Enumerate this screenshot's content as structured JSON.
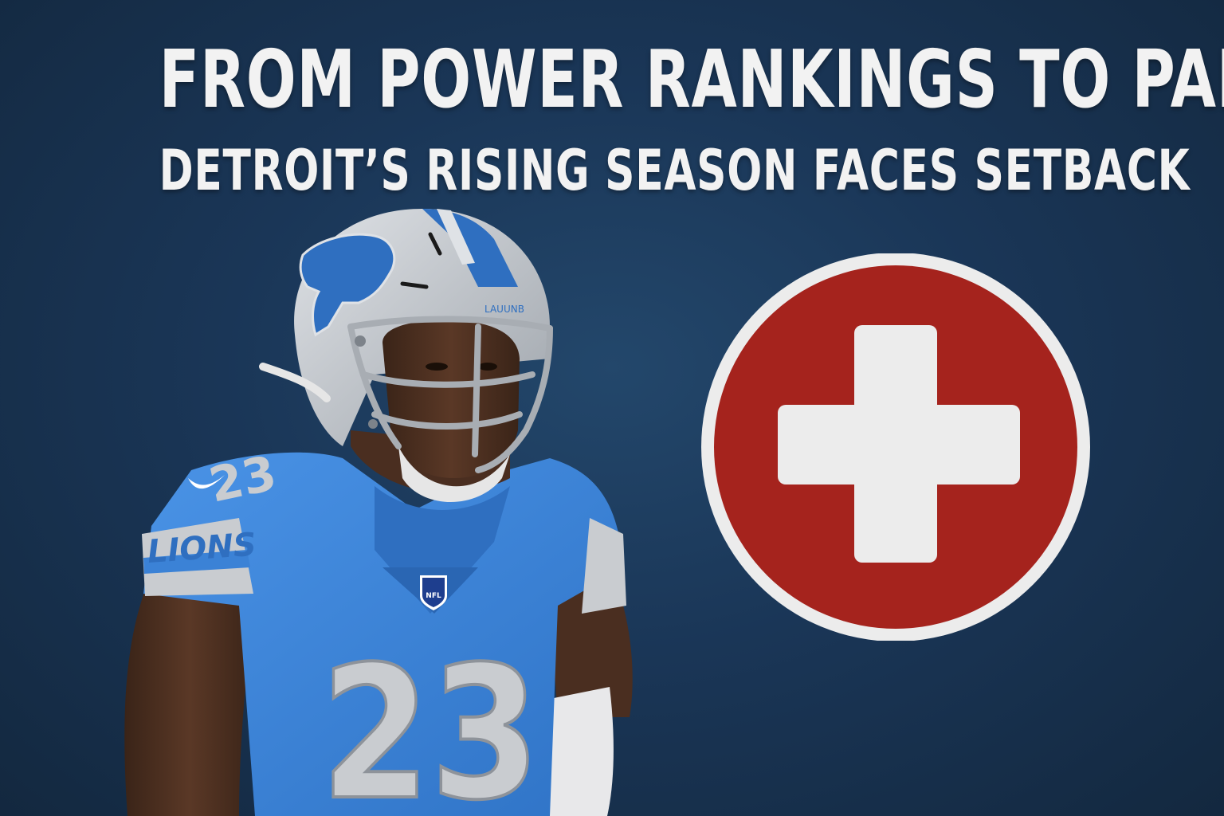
{
  "headline": {
    "title": "FROM POWER RANKINGS TO PAIN",
    "subtitle": "DETROIT’S RISING SEASON FACES SETBACK"
  },
  "player": {
    "jersey_number": "23",
    "sleeve_text": "LIONS",
    "helmet_text": "LAUUNB",
    "shield_text": "NFL",
    "team_colors": {
      "honolulu_blue": "#3b82d6",
      "silver": "#c9ccd0",
      "helmet_silver": "#b9bec4"
    }
  },
  "injury_symbol": {
    "icon": "medical-cross-icon",
    "circle_color": "#a5231d",
    "ring_color": "#ececec",
    "cross_color": "#ececec"
  },
  "background_color": "#1a3657"
}
